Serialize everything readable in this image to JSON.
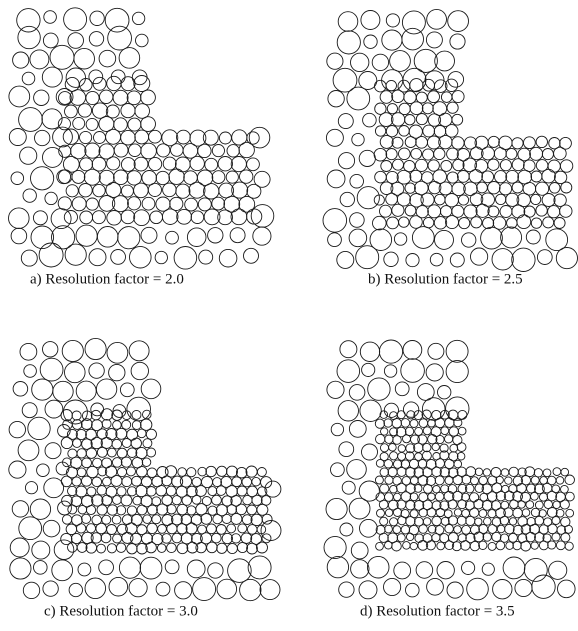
{
  "panels": [
    {
      "caption": "a) Resolution factor = 2.0"
    },
    {
      "caption": "b) Resolution factor = 2.5"
    },
    {
      "caption": "c) Resolution factor = 3.0"
    },
    {
      "caption": "d) Resolution factor = 3.5"
    }
  ]
}
